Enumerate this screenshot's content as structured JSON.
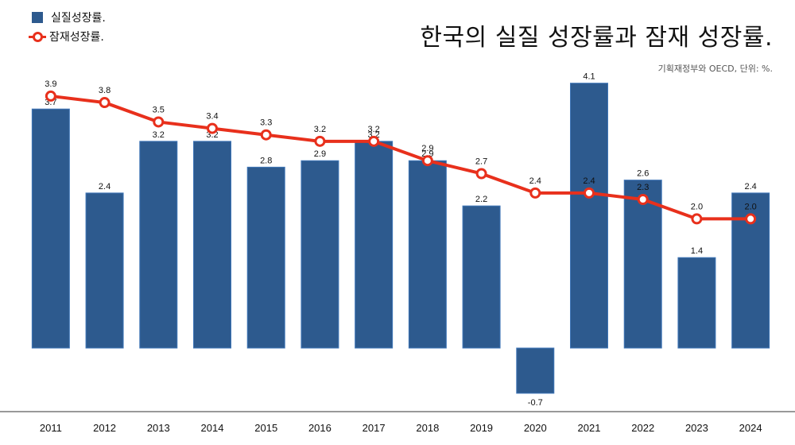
{
  "chart_data": {
    "type": "bar",
    "title": "한국의 실질 성장률과 잠재 성장률.",
    "source": "기획재정부와 OECD, 단위: %.",
    "categories": [
      "2011",
      "2012",
      "2013",
      "2014",
      "2015",
      "2016",
      "2017",
      "2018",
      "2019",
      "2020",
      "2021",
      "2022",
      "2023",
      "2024"
    ],
    "series": [
      {
        "name": "실질성장률.",
        "kind": "bar",
        "color": "#2d5a8e",
        "values": [
          3.7,
          2.4,
          3.2,
          3.2,
          2.8,
          2.9,
          3.2,
          2.9,
          2.2,
          -0.7,
          4.1,
          2.6,
          1.4,
          2.4
        ]
      },
      {
        "name": "잠재성장률.",
        "kind": "line",
        "color": "#e8301c",
        "values": [
          3.9,
          3.8,
          3.5,
          3.4,
          3.3,
          3.2,
          3.2,
          2.9,
          2.7,
          2.4,
          2.4,
          2.3,
          2.0,
          2.0
        ]
      }
    ],
    "ylim": [
      -1.0,
      4.2
    ],
    "legend": "top-left",
    "grid": false
  }
}
